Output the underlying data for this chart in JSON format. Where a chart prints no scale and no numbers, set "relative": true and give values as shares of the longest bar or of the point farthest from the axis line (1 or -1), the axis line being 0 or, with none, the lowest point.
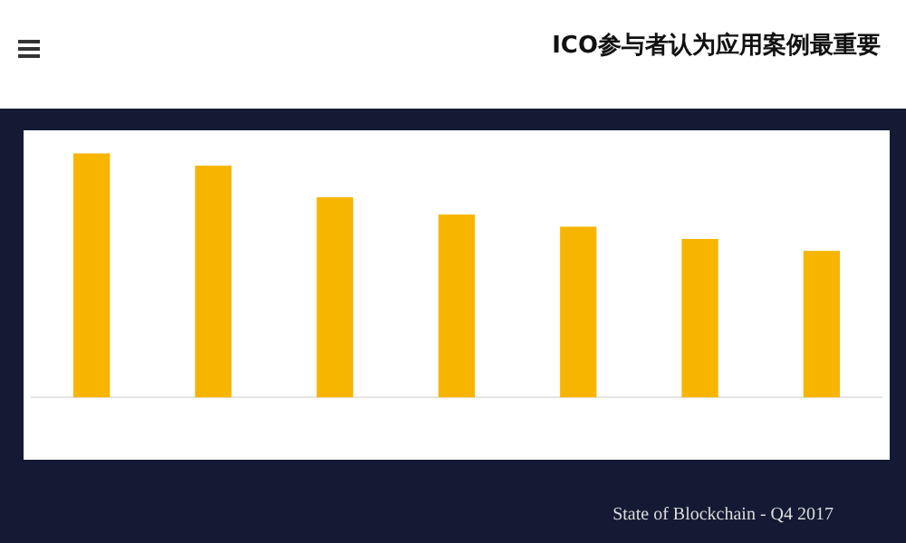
{
  "chart_data": {
    "type": "bar",
    "title": "ICO参与者认为应用案例最重要",
    "categories": [
      null,
      null,
      null,
      null,
      null,
      null,
      null
    ],
    "values": [
      1,
      0.95,
      0.82,
      0.75,
      0.7,
      0.65,
      0.6
    ],
    "color": "#f7b500",
    "relative": true,
    "annotations": [
      "State of Blockchain - Q4 2017"
    ]
  }
}
